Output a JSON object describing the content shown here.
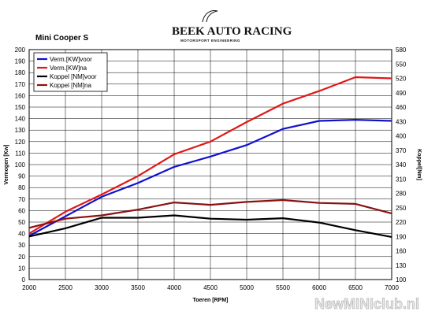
{
  "header": {
    "chart_title": "Mini Cooper S",
    "logo_text": "BEEK AUTO RACING",
    "logo_subtitle": "MOTORSPORT ENGINEERING"
  },
  "watermark": "NewMINIclub.nl",
  "colors": {
    "blue": "#1010d0",
    "red": "#e01818",
    "black": "#000000",
    "darkred": "#8b1010",
    "grid": "#000000"
  },
  "chart_data": {
    "type": "line",
    "title": "Mini Cooper S",
    "xlabel": "Toeren [RPM]",
    "ylabel": "Vermogen [Kw]",
    "y2label": "Koppel[Nm]",
    "x": [
      2000,
      2500,
      3000,
      3500,
      4000,
      4500,
      5000,
      5500,
      6000,
      6500,
      7000
    ],
    "xlim": [
      2000,
      7000
    ],
    "ylim": [
      0,
      200
    ],
    "y2lim": [
      100,
      580
    ],
    "xticks": [
      2000,
      2500,
      3000,
      3500,
      4000,
      4500,
      5000,
      5500,
      6000,
      6500,
      7000
    ],
    "yticks": [
      0,
      10,
      20,
      30,
      40,
      50,
      60,
      70,
      80,
      90,
      100,
      110,
      120,
      130,
      140,
      150,
      160,
      170,
      180,
      190,
      200
    ],
    "y2ticks": [
      100,
      130,
      160,
      190,
      220,
      250,
      280,
      310,
      340,
      370,
      400,
      430,
      460,
      490,
      520,
      550,
      580
    ],
    "grid": true,
    "legend_position": "top-left",
    "series": [
      {
        "name": "Verm.[KW]voor",
        "axis": "left",
        "color": "#1010d0",
        "values": [
          38,
          55,
          72,
          84,
          98,
          107,
          117,
          131,
          138,
          139,
          138
        ]
      },
      {
        "name": "Verm.[KW]na",
        "axis": "left",
        "color": "#e01818",
        "values": [
          40,
          59,
          74,
          90,
          109,
          120,
          137,
          153,
          164,
          176,
          175
        ]
      },
      {
        "name": "Koppel [NM]voor",
        "axis": "right",
        "color": "#000000",
        "values": [
          190,
          207,
          229,
          229,
          234,
          227,
          225,
          228,
          219,
          203,
          189
        ]
      },
      {
        "name": "Koppel [NM]na",
        "axis": "right",
        "color": "#8b1010",
        "values": [
          208,
          227,
          234,
          246,
          261,
          256,
          262,
          266,
          260,
          258,
          238
        ]
      }
    ]
  }
}
